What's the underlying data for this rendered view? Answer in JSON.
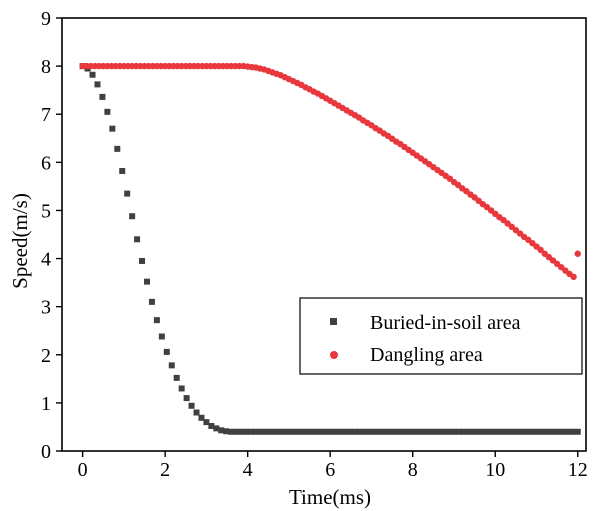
{
  "chart_data": {
    "type": "scatter",
    "xlabel": "Time(ms)",
    "ylabel": "Speed(m/s)",
    "xlim": [
      -0.5,
      12.2
    ],
    "ylim": [
      0,
      9
    ],
    "xticks": [
      "0",
      "2",
      "4",
      "6",
      "8",
      "10",
      "12"
    ],
    "yticks": [
      "0",
      "1",
      "2",
      "3",
      "4",
      "5",
      "6",
      "7",
      "8",
      "9"
    ],
    "grid": false,
    "legend": {
      "position": "bottom-right",
      "entries": [
        "Buried-in-soil area",
        "Dangling area"
      ]
    },
    "series": [
      {
        "name": "Buried-in-soil area",
        "marker": "square",
        "color": "#404040",
        "x": [
          0,
          0.12,
          0.24,
          0.36,
          0.48,
          0.6,
          0.72,
          0.84,
          0.96,
          1.08,
          1.2,
          1.32,
          1.44,
          1.56,
          1.68,
          1.8,
          1.92,
          2.04,
          2.16,
          2.28,
          2.4,
          2.52,
          2.64,
          2.76,
          2.88,
          3.0,
          3.12,
          3.24,
          3.36,
          3.48,
          3.6,
          3.72,
          3.84,
          3.96,
          4.08,
          4.2,
          4.32,
          4.44,
          4.56,
          4.68,
          4.8,
          4.92,
          5.04,
          5.16,
          5.28,
          5.4,
          5.52,
          5.64,
          5.76,
          5.88,
          6.0,
          6.12,
          6.24,
          6.36,
          6.48,
          6.6,
          6.72,
          6.84,
          6.96,
          7.08,
          7.2,
          7.32,
          7.44,
          7.56,
          7.68,
          7.8,
          7.92,
          8.04,
          8.16,
          8.28,
          8.4,
          8.52,
          8.64,
          8.76,
          8.88,
          9.0,
          9.12,
          9.24,
          9.36,
          9.48,
          9.6,
          9.72,
          9.84,
          9.96,
          10.08,
          10.2,
          10.32,
          10.44,
          10.56,
          10.68,
          10.8,
          10.92,
          11.04,
          11.16,
          11.28,
          11.4,
          11.52,
          11.64,
          11.76,
          11.88,
          12.0
        ],
        "y": [
          8.0,
          7.95,
          7.82,
          7.62,
          7.36,
          7.05,
          6.7,
          6.28,
          5.82,
          5.35,
          4.88,
          4.4,
          3.95,
          3.52,
          3.1,
          2.72,
          2.38,
          2.06,
          1.78,
          1.52,
          1.3,
          1.1,
          0.94,
          0.8,
          0.69,
          0.6,
          0.52,
          0.47,
          0.43,
          0.41,
          0.4,
          0.4,
          0.4,
          0.4,
          0.4,
          0.4,
          0.4,
          0.4,
          0.4,
          0.4,
          0.4,
          0.4,
          0.4,
          0.4,
          0.4,
          0.4,
          0.4,
          0.4,
          0.4,
          0.4,
          0.4,
          0.4,
          0.4,
          0.4,
          0.4,
          0.4,
          0.4,
          0.4,
          0.4,
          0.4,
          0.4,
          0.4,
          0.4,
          0.4,
          0.4,
          0.4,
          0.4,
          0.4,
          0.4,
          0.4,
          0.4,
          0.4,
          0.4,
          0.4,
          0.4,
          0.4,
          0.4,
          0.4,
          0.4,
          0.4,
          0.4,
          0.4,
          0.4,
          0.4,
          0.4,
          0.4,
          0.4,
          0.4,
          0.4,
          0.4,
          0.4,
          0.4,
          0.4,
          0.4,
          0.4,
          0.4,
          0.4,
          0.4,
          0.4,
          0.4,
          0.4
        ]
      },
      {
        "name": "Dangling area",
        "marker": "circle",
        "color": "#e8383d",
        "x": [
          0,
          0.1,
          0.2,
          0.3,
          0.4,
          0.5,
          0.6,
          0.7,
          0.8,
          0.9,
          1.0,
          1.1,
          1.2,
          1.3,
          1.4,
          1.5,
          1.6,
          1.7,
          1.8,
          1.9,
          2.0,
          2.1,
          2.2,
          2.3,
          2.4,
          2.5,
          2.6,
          2.7,
          2.8,
          2.9,
          3.0,
          3.1,
          3.2,
          3.3,
          3.4,
          3.5,
          3.6,
          3.7,
          3.8,
          3.9,
          4.0,
          4.1,
          4.2,
          4.3,
          4.4,
          4.5,
          4.6,
          4.7,
          4.8,
          4.9,
          5.0,
          5.1,
          5.2,
          5.3,
          5.4,
          5.5,
          5.6,
          5.7,
          5.8,
          5.9,
          6.0,
          6.1,
          6.2,
          6.3,
          6.4,
          6.5,
          6.6,
          6.7,
          6.8,
          6.9,
          7.0,
          7.1,
          7.2,
          7.3,
          7.4,
          7.5,
          7.6,
          7.7,
          7.8,
          7.9,
          8.0,
          8.1,
          8.2,
          8.3,
          8.4,
          8.5,
          8.6,
          8.7,
          8.8,
          8.9,
          9.0,
          9.1,
          9.2,
          9.3,
          9.4,
          9.5,
          9.6,
          9.7,
          9.8,
          9.9,
          10.0,
          10.1,
          10.2,
          10.3,
          10.4,
          10.5,
          10.6,
          10.7,
          10.8,
          10.9,
          11.0,
          11.1,
          11.2,
          11.3,
          11.4,
          11.5,
          11.6,
          11.7,
          11.8,
          11.9,
          12.0
        ],
        "y": [
          8.0,
          8.0,
          8.0,
          8.0,
          8.0,
          8.0,
          8.0,
          8.0,
          8.0,
          8.0,
          8.0,
          8.0,
          8.0,
          8.0,
          8.0,
          8.0,
          8.0,
          8.0,
          8.0,
          8.0,
          8.0,
          8.0,
          8.0,
          8.0,
          8.0,
          8.0,
          8.0,
          8.0,
          8.0,
          8.0,
          8.0,
          8.0,
          8.0,
          8.0,
          8.0,
          8.0,
          8.0,
          8.0,
          8.0,
          8.0,
          7.99,
          7.98,
          7.97,
          7.95,
          7.93,
          7.9,
          7.87,
          7.84,
          7.81,
          7.77,
          7.73,
          7.69,
          7.65,
          7.61,
          7.56,
          7.52,
          7.47,
          7.43,
          7.38,
          7.33,
          7.28,
          7.23,
          7.18,
          7.13,
          7.08,
          7.03,
          6.98,
          6.93,
          6.87,
          6.82,
          6.77,
          6.71,
          6.66,
          6.6,
          6.55,
          6.49,
          6.43,
          6.38,
          6.32,
          6.26,
          6.2,
          6.14,
          6.08,
          6.02,
          5.96,
          5.9,
          5.84,
          5.78,
          5.72,
          5.66,
          5.59,
          5.53,
          5.46,
          5.4,
          5.33,
          5.27,
          5.2,
          5.13,
          5.07,
          5.0,
          4.93,
          4.86,
          4.8,
          4.73,
          4.66,
          4.59,
          4.52,
          4.45,
          4.39,
          4.32,
          4.25,
          4.18,
          4.1,
          4.03,
          3.96,
          3.89,
          3.82,
          3.75,
          3.68,
          3.62,
          4.1
        ]
      }
    ]
  }
}
